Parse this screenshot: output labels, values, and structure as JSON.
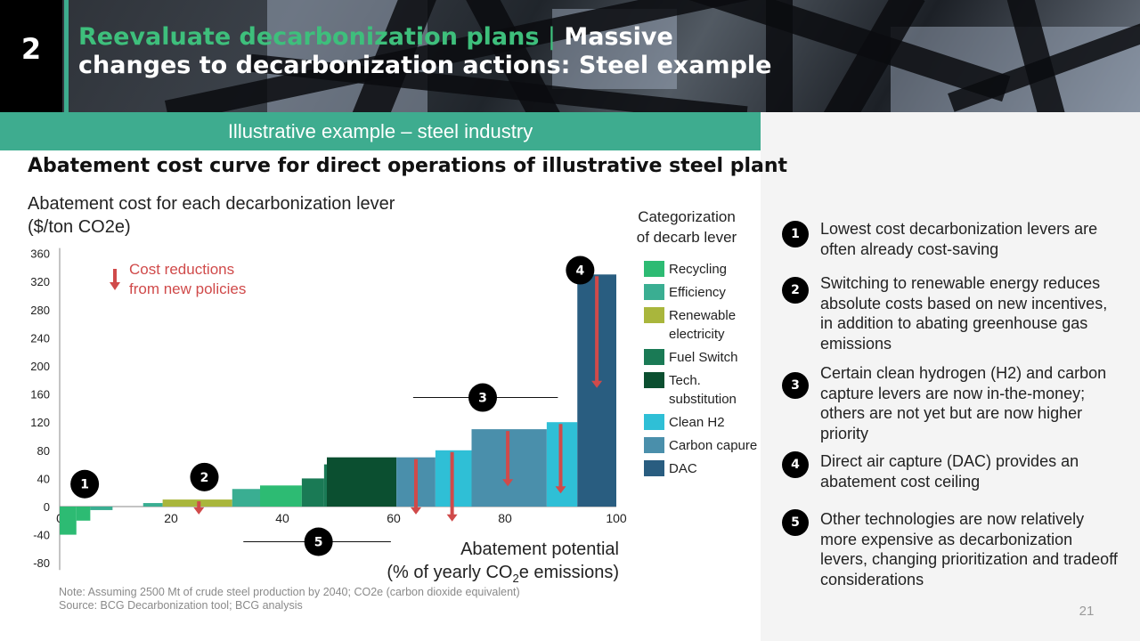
{
  "header": {
    "slide_number": "2",
    "title_highlight": "Reevaluate decarbonization plans",
    "title_separator": "|",
    "title_rest": " Massive changes to decarbonization actions: Steel example"
  },
  "banner": {
    "text": "Illustrative example – steel industry"
  },
  "chart_data": {
    "type": "bar",
    "title": "Abatement cost curve for direct operations of illustrative steel plant",
    "ylabel": "Abatement cost for each decarbonization lever ($/ton CO2e)",
    "xlabel_line1": "Abatement potential",
    "xlabel_line2_prefix": "(% of yearly CO",
    "xlabel_line2_sub": "2",
    "xlabel_line2_suffix": "e emissions)",
    "xlim": [
      0,
      100
    ],
    "ylim": [
      -80,
      360
    ],
    "x_ticks": [
      0,
      20,
      40,
      60,
      80,
      100
    ],
    "y_ticks": [
      360,
      320,
      280,
      240,
      200,
      160,
      120,
      80,
      40,
      0,
      -40,
      -80
    ],
    "annotation": {
      "line1": "Cost reductions",
      "line2": "from new policies",
      "color": "#d04a4a"
    },
    "bars": [
      {
        "x0": 0,
        "x1": 3,
        "value": -40,
        "category": "Recycling"
      },
      {
        "x0": 3,
        "x1": 5.5,
        "value": -20,
        "category": "Recycling"
      },
      {
        "x0": 5.5,
        "x1": 9.5,
        "value": -5,
        "category": "Efficiency"
      },
      {
        "x0": 15,
        "x1": 18.5,
        "value": 5,
        "category": "Efficiency"
      },
      {
        "x0": 18.5,
        "x1": 31,
        "value": 10,
        "category": "Renewable electricity"
      },
      {
        "x0": 31,
        "x1": 36,
        "value": 25,
        "category": "Efficiency"
      },
      {
        "x0": 36,
        "x1": 43.5,
        "value": 30,
        "category": "Recycling"
      },
      {
        "x0": 43.5,
        "x1": 47.5,
        "value": 40,
        "category": "Fuel Switch"
      },
      {
        "x0": 47.5,
        "x1": 48,
        "value": 60,
        "category": "Fuel Switch"
      },
      {
        "x0": 48,
        "x1": 60.5,
        "value": 70,
        "category": "Tech. substitution"
      },
      {
        "x0": 60.5,
        "x1": 67.5,
        "value": 70,
        "category": "Carbon capure"
      },
      {
        "x0": 67.5,
        "x1": 74,
        "value": 80,
        "category": "Clean H2"
      },
      {
        "x0": 74,
        "x1": 87.5,
        "value": 110,
        "category": "Carbon capure"
      },
      {
        "x0": 87.5,
        "x1": 93,
        "value": 120,
        "category": "Clean H2"
      },
      {
        "x0": 93,
        "x1": 100,
        "value": 330,
        "category": "DAC"
      }
    ],
    "policy_arrows": [
      {
        "x": 25,
        "from": 10,
        "to": -10
      },
      {
        "x": 64,
        "from": 70,
        "to": -10
      },
      {
        "x": 70.5,
        "from": 80,
        "to": -20
      },
      {
        "x": 80.5,
        "from": 110,
        "to": 30
      },
      {
        "x": 90,
        "from": 120,
        "to": 20
      },
      {
        "x": 96.5,
        "from": 330,
        "to": 170
      }
    ],
    "markers": [
      {
        "label": "1",
        "x": 4.5,
        "y": 32
      },
      {
        "label": "2",
        "x": 26,
        "y": 42
      },
      {
        "label": "3",
        "x": 76,
        "y": 155,
        "line_x0": 63.5,
        "line_x1": 89.5
      },
      {
        "label": "4",
        "x": 93.5,
        "y": 336
      },
      {
        "label": "5",
        "x": 46.5,
        "y": -50,
        "line_x0": 33,
        "line_x1": 59.5
      }
    ]
  },
  "legend": {
    "title_line1": "Categorization",
    "title_line2": "of decarb lever",
    "items": [
      {
        "label": "Recycling",
        "color": "#2dbb73"
      },
      {
        "label": "Efficiency",
        "color": "#3aae92"
      },
      {
        "label": "Renewable electricity",
        "color": "#a9b63c"
      },
      {
        "label": "Fuel Switch",
        "color": "#1a7a55"
      },
      {
        "label": "Tech. substitution",
        "color": "#0b4f30"
      },
      {
        "label": "Clean H2",
        "color": "#2fbfd6"
      },
      {
        "label": "Carbon capure",
        "color": "#4a8fab"
      },
      {
        "label": "DAC",
        "color": "#295d80"
      }
    ]
  },
  "takeaways": [
    {
      "badge": "1",
      "text": "Lowest cost decarbonization levers are often already cost-saving"
    },
    {
      "badge": "2",
      "text": "Switching to renewable energy reduces absolute costs based on new incentives, in addition to abating greenhouse gas emissions"
    },
    {
      "badge": "3",
      "text": "Certain clean hydrogen (H2) and carbon capture levers are now in-the-money; others are not yet but are now higher priority"
    },
    {
      "badge": "4",
      "text": "Direct air capture (DAC) provides an abatement cost ceiling"
    },
    {
      "badge": "5",
      "text": "Other technologies are now relatively more expensive as decarbonization levers, changing prioritization and tradeoff considerations"
    }
  ],
  "note": {
    "line1": "Note: Assuming 2500 Mt of crude steel production by 2040; CO2e (carbon dioxide equivalent)",
    "line2": "Source: BCG Decarbonization tool; BCG analysis"
  },
  "page_number": "21"
}
